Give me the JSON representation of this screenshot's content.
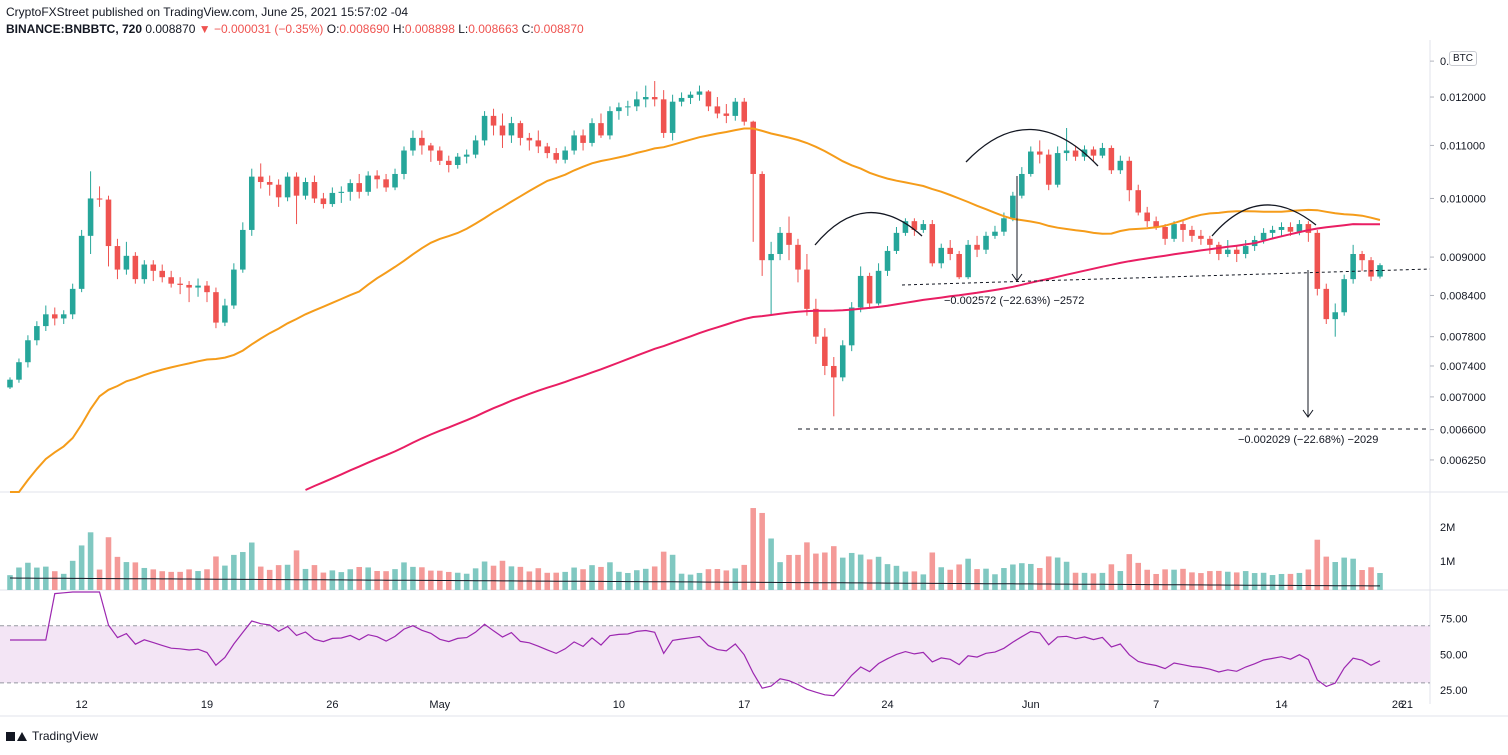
{
  "header": {
    "publisher_line": "CryptoFXStreet published on TradingView.com, June 25, 2021 15:57:02 -04",
    "symbol": "BINANCE:BNBBTC, 720",
    "last": "0.008870",
    "change": "▼ −0.000031 (−0.35%)",
    "open_label": "O:",
    "open": "0.008690",
    "high_label": "H:",
    "high": "0.008898",
    "low_label": "L:",
    "low": "0.008663",
    "close_label": "C:",
    "close": "0.008870"
  },
  "footer": {
    "brand": "TradingView"
  },
  "price_axis": {
    "currency_badge": "BTC"
  },
  "colors": {
    "up": "#26a69a",
    "down": "#ef5350",
    "ma_orange": "#f59c1a",
    "ma_red": "#e91e63",
    "rsi_line": "#9c27b0",
    "rsi_band": "#f3e5f5",
    "vol_ma": "#131722"
  },
  "chart_data": {
    "type": "candlestick",
    "interval": "720",
    "x_ticks": [
      "12",
      "19",
      "26",
      "May",
      "10",
      "17",
      "24",
      "Jun",
      "7",
      "14",
      "21",
      "26"
    ],
    "y_ticks": [
      "0.",
      "0.012000",
      "0.011000",
      "0.010000",
      "0.009000",
      "0.008400",
      "0.007800",
      "0.007400",
      "0.007000",
      "0.006600",
      "0.006250"
    ],
    "y_scale": "log",
    "y_range": [
      0.0059,
      0.0132
    ],
    "candles": [
      [
        0.00712,
        0.00722,
        0.0071,
        0.00725
      ],
      [
        0.00722,
        0.00745,
        0.00718,
        0.0075
      ],
      [
        0.00745,
        0.00775,
        0.00738,
        0.00782
      ],
      [
        0.00775,
        0.00795,
        0.00768,
        0.00802
      ],
      [
        0.00795,
        0.00812,
        0.00788,
        0.00825
      ],
      [
        0.00812,
        0.00806,
        0.00796,
        0.00822
      ],
      [
        0.00806,
        0.00812,
        0.00798,
        0.00818
      ],
      [
        0.00812,
        0.0085,
        0.00805,
        0.00858
      ],
      [
        0.0085,
        0.00935,
        0.00845,
        0.00945
      ],
      [
        0.00935,
        0.01,
        0.00905,
        0.0105
      ],
      [
        0.01,
        0.00998,
        0.00985,
        0.01022
      ],
      [
        0.00998,
        0.00918,
        0.00885,
        0.01005
      ],
      [
        0.00918,
        0.0088,
        0.00865,
        0.0093
      ],
      [
        0.0088,
        0.00902,
        0.00872,
        0.00925
      ],
      [
        0.00902,
        0.00865,
        0.00858,
        0.00908
      ],
      [
        0.00865,
        0.00888,
        0.00858,
        0.00895
      ],
      [
        0.00888,
        0.00878,
        0.00862,
        0.00895
      ],
      [
        0.00878,
        0.00868,
        0.0086,
        0.00888
      ],
      [
        0.00868,
        0.00858,
        0.00852,
        0.00878
      ],
      [
        0.00858,
        0.00856,
        0.00842,
        0.00868
      ],
      [
        0.00856,
        0.00852,
        0.0083,
        0.00862
      ],
      [
        0.00852,
        0.00855,
        0.00838,
        0.00866
      ],
      [
        0.00855,
        0.00845,
        0.0083,
        0.00862
      ],
      [
        0.00845,
        0.008,
        0.00792,
        0.00852
      ],
      [
        0.008,
        0.00825,
        0.00795,
        0.00835
      ],
      [
        0.00825,
        0.0088,
        0.0082,
        0.0089
      ],
      [
        0.0088,
        0.00945,
        0.00875,
        0.00958
      ],
      [
        0.00945,
        0.0104,
        0.00935,
        0.01055
      ],
      [
        0.0104,
        0.0103,
        0.01018,
        0.01065
      ],
      [
        0.0103,
        0.01025,
        0.01005,
        0.01042
      ],
      [
        0.01025,
        0.01002,
        0.00985,
        0.01035
      ],
      [
        0.01002,
        0.0104,
        0.00995,
        0.01048
      ],
      [
        0.0104,
        0.01005,
        0.00955,
        0.01048
      ],
      [
        0.01005,
        0.0103,
        0.00998,
        0.01038
      ],
      [
        0.0103,
        0.01,
        0.00992,
        0.01042
      ],
      [
        0.01,
        0.0099,
        0.00982,
        0.0101
      ],
      [
        0.0099,
        0.0101,
        0.00985,
        0.0102
      ],
      [
        0.0101,
        0.01012,
        0.00992,
        0.01022
      ],
      [
        0.01012,
        0.01028,
        0.00996,
        0.01035
      ],
      [
        0.01028,
        0.01012,
        0.01,
        0.01045
      ],
      [
        0.01012,
        0.01042,
        0.01005,
        0.0105
      ],
      [
        0.01042,
        0.01035,
        0.01018,
        0.01052
      ],
      [
        0.01035,
        0.0102,
        0.01012,
        0.01045
      ],
      [
        0.0102,
        0.01045,
        0.01015,
        0.01055
      ],
      [
        0.01045,
        0.0109,
        0.01035,
        0.01098
      ],
      [
        0.0109,
        0.01115,
        0.0108,
        0.0113
      ],
      [
        0.01115,
        0.011,
        0.01082,
        0.0113
      ],
      [
        0.011,
        0.0109,
        0.01068,
        0.01105
      ],
      [
        0.0109,
        0.0107,
        0.01062,
        0.01098
      ],
      [
        0.0107,
        0.01062,
        0.01048,
        0.0108
      ],
      [
        0.01062,
        0.01078,
        0.01055,
        0.01085
      ],
      [
        0.01078,
        0.01082,
        0.01065,
        0.01092
      ],
      [
        0.01082,
        0.0111,
        0.01075,
        0.0112
      ],
      [
        0.0111,
        0.0116,
        0.011,
        0.0117
      ],
      [
        0.0116,
        0.0114,
        0.0112,
        0.01175
      ],
      [
        0.0114,
        0.0112,
        0.01095,
        0.01165
      ],
      [
        0.0112,
        0.01145,
        0.01105,
        0.01158
      ],
      [
        0.01145,
        0.01115,
        0.011,
        0.0115
      ],
      [
        0.01115,
        0.0111,
        0.0109,
        0.01125
      ],
      [
        0.0111,
        0.01098,
        0.01085,
        0.0113
      ],
      [
        0.01098,
        0.01085,
        0.01075,
        0.01105
      ],
      [
        0.01085,
        0.01072,
        0.01065,
        0.01095
      ],
      [
        0.01072,
        0.0109,
        0.01065,
        0.01098
      ],
      [
        0.0109,
        0.0112,
        0.01082,
        0.0113
      ],
      [
        0.0112,
        0.01105,
        0.0109,
        0.01132
      ],
      [
        0.01105,
        0.01145,
        0.01098,
        0.01155
      ],
      [
        0.01145,
        0.0112,
        0.01115,
        0.01165
      ],
      [
        0.0112,
        0.0117,
        0.01112,
        0.0118
      ],
      [
        0.0117,
        0.01178,
        0.01152,
        0.01188
      ],
      [
        0.01178,
        0.0118,
        0.0116,
        0.01192
      ],
      [
        0.0118,
        0.01195,
        0.0117,
        0.01212
      ],
      [
        0.01195,
        0.012,
        0.01178,
        0.01225
      ],
      [
        0.012,
        0.01195,
        0.0118,
        0.01235
      ],
      [
        0.01195,
        0.01125,
        0.01115,
        0.01215
      ],
      [
        0.01125,
        0.0119,
        0.0111,
        0.01205
      ],
      [
        0.0119,
        0.01198,
        0.0118,
        0.0121
      ],
      [
        0.01198,
        0.01205,
        0.01185,
        0.01212
      ],
      [
        0.01205,
        0.01212,
        0.01192,
        0.01225
      ],
      [
        0.01212,
        0.0118,
        0.0117,
        0.01215
      ],
      [
        0.0118,
        0.01165,
        0.01155,
        0.012
      ],
      [
        0.01165,
        0.0116,
        0.01145,
        0.01185
      ],
      [
        0.0116,
        0.0119,
        0.0115,
        0.01198
      ],
      [
        0.0119,
        0.01148,
        0.0114,
        0.01198
      ],
      [
        0.01148,
        0.01045,
        0.00925,
        0.0115
      ],
      [
        0.01045,
        0.00895,
        0.0087,
        0.0105
      ],
      [
        0.00895,
        0.00905,
        0.0081,
        0.00925
      ],
      [
        0.00905,
        0.0094,
        0.00895,
        0.0095
      ],
      [
        0.0094,
        0.0092,
        0.00895,
        0.00968
      ],
      [
        0.0092,
        0.0088,
        0.0086,
        0.0093
      ],
      [
        0.0088,
        0.0082,
        0.0081,
        0.00905
      ],
      [
        0.0082,
        0.0078,
        0.0077,
        0.00835
      ],
      [
        0.0078,
        0.0074,
        0.00728,
        0.00792
      ],
      [
        0.0074,
        0.00725,
        0.00676,
        0.00752
      ],
      [
        0.00725,
        0.00768,
        0.0072,
        0.00775
      ],
      [
        0.00768,
        0.00822,
        0.0076,
        0.0083
      ],
      [
        0.00822,
        0.0087,
        0.00815,
        0.00885
      ],
      [
        0.0087,
        0.00828,
        0.0082,
        0.00875
      ],
      [
        0.00828,
        0.00878,
        0.00825,
        0.0089
      ],
      [
        0.00878,
        0.0091,
        0.0087,
        0.00918
      ],
      [
        0.0091,
        0.0094,
        0.00905,
        0.0095
      ],
      [
        0.0094,
        0.0096,
        0.00935,
        0.00965
      ],
      [
        0.0096,
        0.00945,
        0.00935,
        0.00965
      ],
      [
        0.00945,
        0.00955,
        0.0094,
        0.00962
      ],
      [
        0.00955,
        0.0089,
        0.00885,
        0.00962
      ],
      [
        0.0089,
        0.00915,
        0.00882,
        0.00922
      ],
      [
        0.00915,
        0.00905,
        0.00895,
        0.00928
      ],
      [
        0.00905,
        0.00868,
        0.00865,
        0.0091
      ],
      [
        0.00868,
        0.0092,
        0.00865,
        0.00928
      ],
      [
        0.0092,
        0.00912,
        0.009,
        0.00935
      ],
      [
        0.00912,
        0.00935,
        0.00905,
        0.00942
      ],
      [
        0.00935,
        0.00942,
        0.0093,
        0.00952
      ],
      [
        0.00942,
        0.00965,
        0.00935,
        0.00975
      ],
      [
        0.00965,
        0.01005,
        0.0096,
        0.01012
      ],
      [
        0.01005,
        0.01045,
        0.01,
        0.01058
      ],
      [
        0.01045,
        0.01088,
        0.0104,
        0.01098
      ],
      [
        0.01088,
        0.01082,
        0.01065,
        0.0111
      ],
      [
        0.01082,
        0.01025,
        0.01015,
        0.01092
      ],
      [
        0.01025,
        0.01085,
        0.0102,
        0.01098
      ],
      [
        0.01085,
        0.0109,
        0.0107,
        0.01135
      ],
      [
        0.0109,
        0.01078,
        0.0107,
        0.011
      ],
      [
        0.01078,
        0.01092,
        0.0107,
        0.011
      ],
      [
        0.01092,
        0.0108,
        0.0107,
        0.01098
      ],
      [
        0.0108,
        0.01095,
        0.01075,
        0.01105
      ],
      [
        0.01095,
        0.01052,
        0.01045,
        0.011
      ],
      [
        0.01052,
        0.0107,
        0.01045,
        0.0108
      ],
      [
        0.0107,
        0.01015,
        0.00995,
        0.01078
      ],
      [
        0.01015,
        0.00975,
        0.0097,
        0.01025
      ],
      [
        0.00975,
        0.0096,
        0.0095,
        0.00985
      ],
      [
        0.0096,
        0.0095,
        0.00945,
        0.00968
      ],
      [
        0.0095,
        0.0093,
        0.0092,
        0.00955
      ],
      [
        0.0093,
        0.00955,
        0.00925,
        0.0096
      ],
      [
        0.00955,
        0.00945,
        0.00925,
        0.00962
      ],
      [
        0.00945,
        0.00935,
        0.00925,
        0.00952
      ],
      [
        0.00935,
        0.0093,
        0.0092,
        0.00945
      ],
      [
        0.0093,
        0.0092,
        0.00905,
        0.00935
      ],
      [
        0.0092,
        0.00905,
        0.00895,
        0.00925
      ],
      [
        0.00905,
        0.00912,
        0.009,
        0.00928
      ],
      [
        0.00912,
        0.00905,
        0.00892,
        0.00918
      ],
      [
        0.00905,
        0.00918,
        0.00898,
        0.00928
      ],
      [
        0.00918,
        0.00928,
        0.0091,
        0.00935
      ],
      [
        0.00928,
        0.0094,
        0.00922,
        0.00948
      ],
      [
        0.0094,
        0.00945,
        0.00932,
        0.00952
      ],
      [
        0.00945,
        0.0095,
        0.00935,
        0.00958
      ],
      [
        0.0095,
        0.00942,
        0.00935,
        0.00958
      ],
      [
        0.00942,
        0.00955,
        0.00936,
        0.00962
      ],
      [
        0.00955,
        0.0094,
        0.00925,
        0.0096
      ],
      [
        0.0094,
        0.0085,
        0.0084,
        0.00945
      ],
      [
        0.0085,
        0.00805,
        0.00798,
        0.00858
      ],
      [
        0.00805,
        0.00815,
        0.0078,
        0.00828
      ],
      [
        0.00815,
        0.00865,
        0.0081,
        0.00872
      ],
      [
        0.00865,
        0.00905,
        0.00858,
        0.0092
      ],
      [
        0.00905,
        0.00895,
        0.00878,
        0.0091
      ],
      [
        0.00895,
        0.00869,
        0.00862,
        0.009
      ],
      [
        0.00869,
        0.00887,
        0.00866,
        0.0089
      ]
    ],
    "series": [
      {
        "name": "MA orange",
        "values": []
      },
      {
        "name": "MA red",
        "values": []
      }
    ],
    "annotations": [
      {
        "text": "−0.002572 (−22.63%) −2572"
      },
      {
        "text": "−0.002029 (−22.68%) −2029"
      }
    ],
    "volume": {
      "y_ticks": [
        "2M",
        "1M"
      ]
    },
    "rsi": {
      "y_ticks": [
        "75.00",
        "50.00",
        "25.00"
      ],
      "upper": 70,
      "lower": 30
    }
  }
}
